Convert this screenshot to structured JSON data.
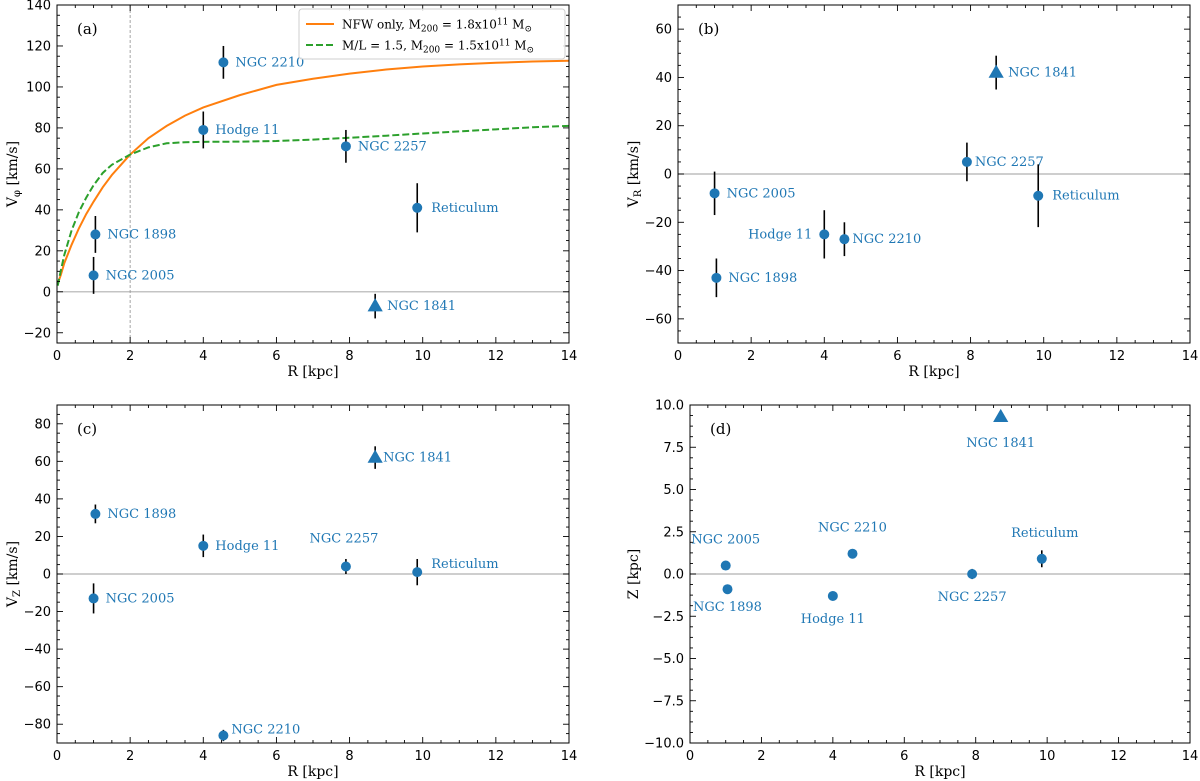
{
  "colors": {
    "marker": "#1f77b4",
    "errorbar": "#000000",
    "nfw_line": "#ff7f0e",
    "ml_line": "#2ca02c",
    "zero_line": "#b0b0b0",
    "vline": "#9a9a9a"
  },
  "chart_data": [
    {
      "type": "scatter",
      "panel": "(a)",
      "xlabel": "R [kpc]",
      "ylabel": {
        "main": "V",
        "sub": "φ",
        "unit": " [km/s]"
      },
      "xlim": [
        0,
        14
      ],
      "ylim": [
        -25,
        140
      ],
      "xticks": [
        0,
        2,
        4,
        6,
        8,
        10,
        12,
        14
      ],
      "yticks": [
        -20,
        0,
        20,
        40,
        60,
        80,
        100,
        120,
        140
      ],
      "vline_x": 2,
      "points": [
        {
          "name": "NGC 2005",
          "x": 1.0,
          "y": 8,
          "err": 9,
          "marker": "circle"
        },
        {
          "name": "NGC 1898",
          "x": 1.05,
          "y": 28,
          "err": 9,
          "marker": "circle"
        },
        {
          "name": "Hodge 11",
          "x": 4.0,
          "y": 79,
          "err": 9,
          "marker": "circle"
        },
        {
          "name": "NGC 2210",
          "x": 4.55,
          "y": 112,
          "err": 8,
          "marker": "circle"
        },
        {
          "name": "NGC 2257",
          "x": 7.9,
          "y": 71,
          "err": 8,
          "marker": "circle"
        },
        {
          "name": "Reticulum",
          "x": 9.85,
          "y": 41,
          "err": 12,
          "marker": "circle"
        },
        {
          "name": "NGC 1841",
          "x": 8.7,
          "y": -7,
          "err": 6,
          "marker": "triangle"
        }
      ],
      "curves": [
        {
          "name": "NFW only",
          "label": {
            "pre": "NFW only, M",
            "sub": "200",
            "mid": " = 1.8x10",
            "sup": "11",
            "post": " M",
            "sun": "⊙"
          },
          "style": "solid",
          "x": [
            0.02,
            0.1,
            0.2,
            0.4,
            0.6,
            0.8,
            1.0,
            1.25,
            1.5,
            2.0,
            2.5,
            3.0,
            3.5,
            4.0,
            5.0,
            6.0,
            7.0,
            8.0,
            9.0,
            10.0,
            11.0,
            12.0,
            13.0,
            14.0
          ],
          "y": [
            4,
            8,
            14,
            23,
            31,
            38,
            44,
            51,
            57,
            67,
            75,
            81,
            86,
            90,
            96,
            101,
            104,
            106.5,
            108.5,
            110,
            111,
            111.8,
            112.4,
            112.8
          ]
        },
        {
          "name": "M/L = 1.5",
          "label": {
            "pre": "M/L = 1.5, M",
            "sub": "200",
            "mid": " = 1.5x10",
            "sup": "11",
            "post": " M",
            "sun": "⊙"
          },
          "style": "dashed",
          "x": [
            0.02,
            0.1,
            0.2,
            0.4,
            0.6,
            0.8,
            1.0,
            1.25,
            1.5,
            2.0,
            2.5,
            3.0,
            3.5,
            4.0,
            5.0,
            6.0,
            7.0,
            8.0,
            9.0,
            10.0,
            11.0,
            12.0,
            13.0,
            14.0
          ],
          "y": [
            3,
            10,
            18,
            30,
            39,
            46,
            52,
            58,
            62,
            67,
            70.5,
            72.5,
            73,
            73.2,
            73.3,
            73.6,
            74.3,
            75.2,
            76.2,
            77.3,
            78.3,
            79.3,
            80.3,
            81
          ]
        }
      ]
    },
    {
      "type": "scatter",
      "panel": "(b)",
      "xlabel": "R [kpc]",
      "ylabel": {
        "main": "V",
        "sub": "R",
        "unit": " [km/s]"
      },
      "xlim": [
        0,
        14
      ],
      "ylim": [
        -70,
        70
      ],
      "xticks": [
        0,
        2,
        4,
        6,
        8,
        10,
        12,
        14
      ],
      "yticks": [
        -60,
        -40,
        -20,
        0,
        20,
        40,
        60
      ],
      "points": [
        {
          "name": "NGC 2005",
          "x": 1.0,
          "y": -8,
          "err": 9,
          "marker": "circle"
        },
        {
          "name": "NGC 1898",
          "x": 1.05,
          "y": -43,
          "err": 8,
          "marker": "circle"
        },
        {
          "name": "Hodge 11",
          "x": 4.0,
          "y": -25,
          "err": 10,
          "marker": "circle"
        },
        {
          "name": "NGC 2210",
          "x": 4.55,
          "y": -27,
          "err": 7,
          "marker": "circle"
        },
        {
          "name": "NGC 2257",
          "x": 7.9,
          "y": 5,
          "err": 8,
          "marker": "circle"
        },
        {
          "name": "Reticulum",
          "x": 9.85,
          "y": -9,
          "err": 13,
          "marker": "circle"
        },
        {
          "name": "NGC 1841",
          "x": 8.7,
          "y": 42,
          "err": 7,
          "marker": "triangle"
        }
      ]
    },
    {
      "type": "scatter",
      "panel": "(c)",
      "xlabel": "R [kpc]",
      "ylabel": {
        "main": "V",
        "sub": "Z",
        "unit": " [km/s]"
      },
      "xlim": [
        0,
        14
      ],
      "ylim": [
        -90,
        90
      ],
      "xticks": [
        0,
        2,
        4,
        6,
        8,
        10,
        12,
        14
      ],
      "yticks": [
        -80,
        -60,
        -40,
        -20,
        0,
        20,
        40,
        60,
        80
      ],
      "points": [
        {
          "name": "NGC 1898",
          "x": 1.05,
          "y": 32,
          "err": 5,
          "marker": "circle"
        },
        {
          "name": "NGC 2005",
          "x": 1.0,
          "y": -13,
          "err": 8,
          "marker": "circle"
        },
        {
          "name": "Hodge 11",
          "x": 4.0,
          "y": 15,
          "err": 6,
          "marker": "circle"
        },
        {
          "name": "NGC 2257",
          "x": 7.9,
          "y": 4,
          "err": 4,
          "marker": "circle"
        },
        {
          "name": "Reticulum",
          "x": 9.85,
          "y": 1,
          "err": 7,
          "marker": "circle"
        },
        {
          "name": "NGC 1841",
          "x": 8.7,
          "y": 62,
          "err": 6,
          "marker": "triangle"
        },
        {
          "name": "NGC 2210",
          "x": 4.55,
          "y": -86,
          "err": 3,
          "marker": "circle"
        }
      ]
    },
    {
      "type": "scatter",
      "panel": "(d)",
      "xlabel": "R [kpc]",
      "ylabel": {
        "main": "Z",
        "sub": "",
        "unit": " [kpc]"
      },
      "xlim": [
        0,
        14
      ],
      "ylim": [
        -10,
        10
      ],
      "xticks": [
        0,
        2,
        4,
        6,
        8,
        10,
        12,
        14
      ],
      "yticks": [
        -10.0,
        -7.5,
        -5.0,
        -2.5,
        0.0,
        2.5,
        5.0,
        7.5,
        10.0
      ],
      "ytick_decimals": 1,
      "points": [
        {
          "name": "NGC 2005",
          "x": 1.0,
          "y": 0.5,
          "err": 0,
          "marker": "circle"
        },
        {
          "name": "NGC 1898",
          "x": 1.05,
          "y": -0.9,
          "err": 0,
          "marker": "circle"
        },
        {
          "name": "Hodge 11",
          "x": 4.0,
          "y": -1.3,
          "err": 0,
          "marker": "circle"
        },
        {
          "name": "NGC 2210",
          "x": 4.55,
          "y": 1.2,
          "err": 0,
          "marker": "circle"
        },
        {
          "name": "NGC 2257",
          "x": 7.9,
          "y": 0.0,
          "err": 0.3,
          "marker": "circle"
        },
        {
          "name": "Reticulum",
          "x": 9.85,
          "y": 0.9,
          "err": 0.5,
          "marker": "circle"
        },
        {
          "name": "NGC 1841",
          "x": 8.7,
          "y": 9.3,
          "err": 0,
          "marker": "triangle"
        }
      ]
    }
  ]
}
